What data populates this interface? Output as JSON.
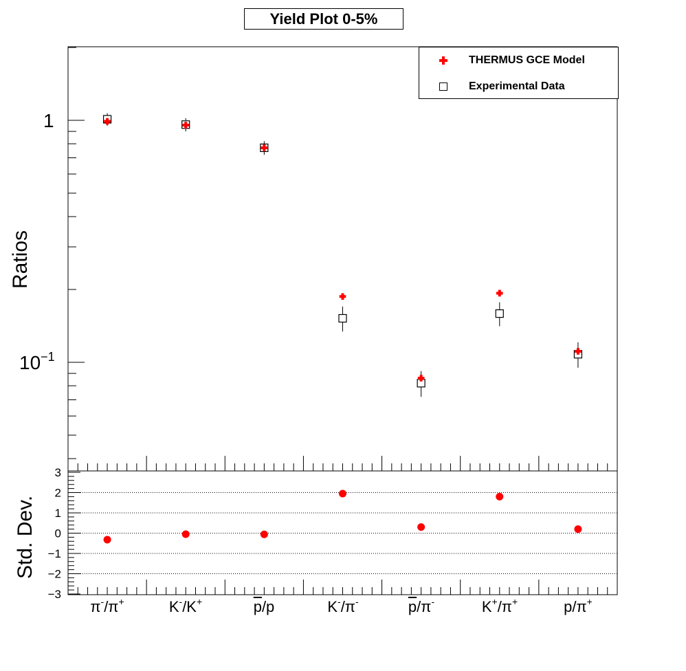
{
  "title": "Yield Plot 0-5%",
  "colors": {
    "model": "#ff0000",
    "data": "#000000",
    "axis": "#000000"
  },
  "legend": {
    "model_label": "THERMUS GCE Model",
    "data_label": "Experimental Data",
    "model_marker": "red-cross-icon",
    "data_marker": "open-square-icon"
  },
  "chart_data": [
    {
      "type": "scatter",
      "title": "Yield Plot 0-5%",
      "ylabel": "Ratios",
      "yscale": "log",
      "ylim": [
        0.04,
        2.0
      ],
      "ytick_labels": [
        "1",
        "10^-1"
      ],
      "categories": [
        {
          "id": "pim_pip",
          "parts": [
            [
              "π",
              "-"
            ],
            [
              "/π",
              "+"
            ]
          ]
        },
        {
          "id": "km_kp",
          "parts": [
            [
              "K",
              "-"
            ],
            [
              "/K",
              "+"
            ]
          ]
        },
        {
          "id": "pbar_p",
          "parts": [
            [
              "p̄",
              ""
            ],
            [
              "/p",
              ""
            ]
          ],
          "text": "p/p",
          "overline_first": true
        },
        {
          "id": "km_pim",
          "parts": [
            [
              "K",
              "-"
            ],
            [
              "/π",
              "-"
            ]
          ]
        },
        {
          "id": "pbar_pim",
          "parts": [
            [
              "p",
              ""
            ],
            [
              "/π",
              "-"
            ]
          ],
          "overline_first": true
        },
        {
          "id": "kp_pip",
          "parts": [
            [
              "K",
              "+"
            ],
            [
              "/π",
              "+"
            ]
          ]
        },
        {
          "id": "p_pip",
          "parts": [
            [
              "p/π",
              "+"
            ]
          ]
        }
      ],
      "series": [
        {
          "name": "THERMUS GCE Model",
          "marker": "cross",
          "values": [
            0.99,
            0.955,
            0.77,
            0.187,
            0.086,
            0.193,
            0.111
          ]
        },
        {
          "name": "Experimental Data",
          "marker": "open-square",
          "values": [
            1.01,
            0.96,
            0.77,
            0.152,
            0.082,
            0.159,
            0.108
          ],
          "errors": [
            0.06,
            0.06,
            0.05,
            0.018,
            0.01,
            0.018,
            0.013
          ]
        }
      ],
      "legend_position": "top-right"
    },
    {
      "type": "scatter",
      "ylabel": "Std. Dev.",
      "ylim": [
        -3,
        3
      ],
      "yticks": [
        -3,
        -2,
        -1,
        0,
        1,
        2,
        3
      ],
      "grid": "horizontal dotted",
      "series": [
        {
          "name": "",
          "marker": "filled-circle",
          "values": [
            -0.32,
            -0.05,
            -0.06,
            1.95,
            0.3,
            1.8,
            0.2
          ]
        }
      ]
    }
  ],
  "category_labels": {
    "c0": {
      "a": "π",
      "a_sup": "-",
      "b": "/π",
      "b_sup": "+"
    },
    "c1": {
      "a": "K",
      "a_sup": "-",
      "b": "/K",
      "b_sup": "+"
    },
    "c2": {
      "a": "p",
      "a_sup": "",
      "b": "/p",
      "b_sup": ""
    },
    "c3": {
      "a": "K",
      "a_sup": "-",
      "b": "/π",
      "b_sup": "-"
    },
    "c4": {
      "a": "p",
      "a_sup": "",
      "b": "/π",
      "b_sup": "-"
    },
    "c5": {
      "a": "K",
      "a_sup": "+",
      "b": "/π",
      "b_sup": "+"
    },
    "c6": {
      "a": "p/π",
      "a_sup": "",
      "b": "",
      "b_sup": "+"
    }
  },
  "axes": {
    "top_ylabel": "Ratios",
    "bottom_ylabel": "Std. Dev.",
    "top_tick_1": "1",
    "top_tick_01_base": "10",
    "top_tick_01_exp": "−1"
  }
}
